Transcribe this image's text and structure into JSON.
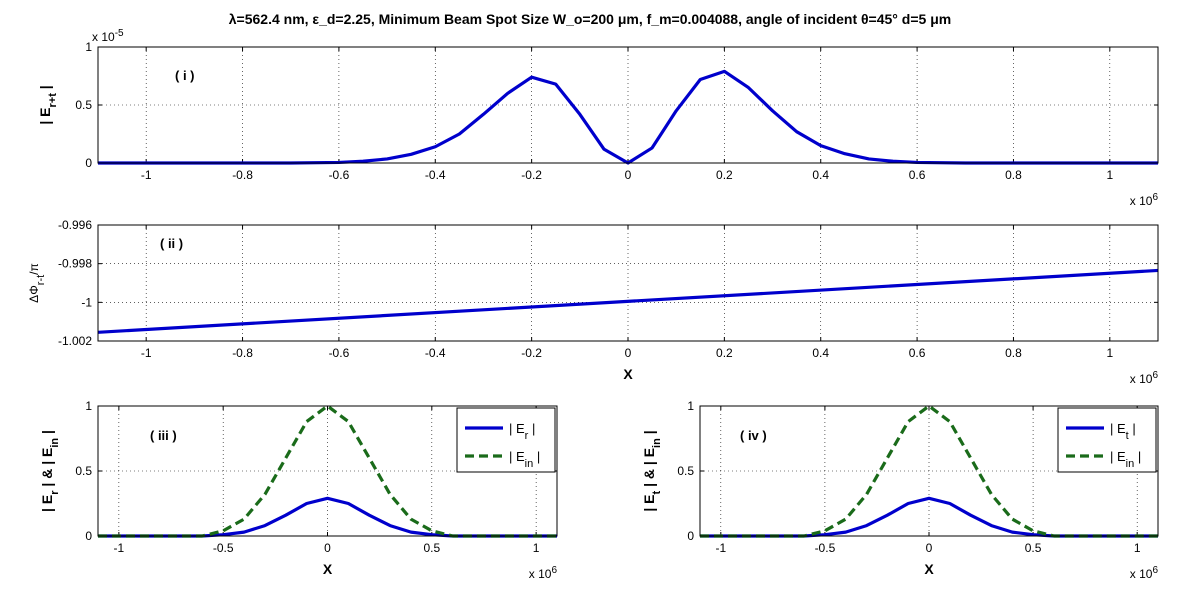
{
  "figure_title": "λ=562.4 nm, ε_d=2.25,  Minimum Beam Spot Size W_o=200 μm, f_m=0.004088, angle of incident θ=45° d=5 μm",
  "colors": {
    "blue": "#0000cc",
    "green": "#1a6b1a"
  },
  "chart_data": [
    {
      "id": "i",
      "type": "line",
      "panel_label": "( i )",
      "ylabel": "| E r+t |",
      "xlabel": "",
      "y_exponent": "x 10-5",
      "x_exponent": "x 10 6",
      "xlim": [
        -1.1,
        1.1
      ],
      "ylim": [
        0,
        1
      ],
      "xticks": [
        "-1",
        "-0.8",
        "-0.6",
        "-0.4",
        "-0.2",
        "0",
        "0.2",
        "0.4",
        "0.6",
        "0.8",
        "1"
      ],
      "yticks": [
        "0",
        "0.5",
        "1"
      ],
      "series": [
        {
          "color": "blue",
          "x": [
            -1.1,
            -0.7,
            -0.6,
            -0.55,
            -0.5,
            -0.45,
            -0.4,
            -0.35,
            -0.3,
            -0.25,
            -0.2,
            -0.15,
            -0.1,
            -0.05,
            0,
            0.05,
            0.1,
            0.15,
            0.2,
            0.25,
            0.3,
            0.35,
            0.4,
            0.45,
            0.5,
            0.55,
            0.6,
            0.7,
            1.1
          ],
          "y": [
            0,
            0,
            0.005,
            0.015,
            0.035,
            0.075,
            0.14,
            0.25,
            0.42,
            0.6,
            0.74,
            0.68,
            0.42,
            0.12,
            0,
            0.13,
            0.45,
            0.72,
            0.79,
            0.65,
            0.45,
            0.27,
            0.15,
            0.08,
            0.035,
            0.015,
            0.005,
            0,
            0
          ]
        }
      ]
    },
    {
      "id": "ii",
      "type": "line",
      "panel_label": "( ii )",
      "ylabel": "ΔΦ r-t /π",
      "xlabel": "X",
      "y_exponent": "",
      "x_exponent": "x 10 6",
      "xlim": [
        -1.1,
        1.1
      ],
      "ylim": [
        -1.002,
        -0.996
      ],
      "xticks": [
        "-1",
        "-0.8",
        "-0.6",
        "-0.4",
        "-0.2",
        "0",
        "0.2",
        "0.4",
        "0.6",
        "0.8",
        "1"
      ],
      "yticks": [
        "-1.002",
        "-1",
        "-0.998",
        "-0.996"
      ],
      "series": [
        {
          "color": "blue",
          "x": [
            -1.1,
            1.1
          ],
          "y": [
            -1.00155,
            -0.99835
          ]
        }
      ]
    },
    {
      "id": "iii",
      "type": "line",
      "panel_label": "( iii )",
      "ylabel": "| E r | & | E in |",
      "xlabel": "X",
      "y_exponent": "",
      "x_exponent": "x 10 6",
      "xlim": [
        -1.1,
        1.1
      ],
      "ylim": [
        0,
        1
      ],
      "xticks": [
        "-1",
        "-0.5",
        "0",
        "0.5",
        "1"
      ],
      "yticks": [
        "0",
        "0.5",
        "1"
      ],
      "legend_position": "top-right",
      "series": [
        {
          "name": "| E r |",
          "color": "blue",
          "style": "solid",
          "x": [
            -1.1,
            -0.6,
            -0.5,
            -0.4,
            -0.3,
            -0.2,
            -0.1,
            0,
            0.1,
            0.2,
            0.3,
            0.4,
            0.5,
            0.6,
            1.1
          ],
          "y": [
            0,
            0,
            0.01,
            0.03,
            0.08,
            0.16,
            0.25,
            0.29,
            0.25,
            0.16,
            0.08,
            0.03,
            0.01,
            0,
            0
          ]
        },
        {
          "name": "| E in |",
          "color": "green",
          "style": "dashed",
          "x": [
            -1.1,
            -0.6,
            -0.5,
            -0.4,
            -0.3,
            -0.2,
            -0.1,
            0,
            0.1,
            0.2,
            0.3,
            0.4,
            0.5,
            0.6,
            1.1
          ],
          "y": [
            0,
            0,
            0.04,
            0.13,
            0.32,
            0.6,
            0.88,
            1,
            0.88,
            0.6,
            0.32,
            0.13,
            0.04,
            0,
            0
          ]
        }
      ]
    },
    {
      "id": "iv",
      "type": "line",
      "panel_label": "( iv )",
      "ylabel": "| E t | & | E in |",
      "xlabel": "X",
      "y_exponent": "",
      "x_exponent": "x 10 6",
      "xlim": [
        -1.1,
        1.1
      ],
      "ylim": [
        0,
        1
      ],
      "xticks": [
        "-1",
        "-0.5",
        "0",
        "0.5",
        "1"
      ],
      "yticks": [
        "0",
        "0.5",
        "1"
      ],
      "legend_position": "top-right",
      "series": [
        {
          "name": "| E t |",
          "color": "blue",
          "style": "solid",
          "x": [
            -1.1,
            -0.6,
            -0.5,
            -0.4,
            -0.3,
            -0.2,
            -0.1,
            0,
            0.1,
            0.2,
            0.3,
            0.4,
            0.5,
            0.6,
            1.1
          ],
          "y": [
            0,
            0,
            0.01,
            0.03,
            0.08,
            0.16,
            0.25,
            0.29,
            0.25,
            0.16,
            0.08,
            0.03,
            0.01,
            0,
            0
          ]
        },
        {
          "name": "| E in |",
          "color": "green",
          "style": "dashed",
          "x": [
            -1.1,
            -0.6,
            -0.5,
            -0.4,
            -0.3,
            -0.2,
            -0.1,
            0,
            0.1,
            0.2,
            0.3,
            0.4,
            0.5,
            0.6,
            1.1
          ],
          "y": [
            0,
            0,
            0.04,
            0.13,
            0.32,
            0.6,
            0.88,
            1,
            0.88,
            0.6,
            0.32,
            0.13,
            0.04,
            0,
            0
          ]
        }
      ]
    }
  ]
}
